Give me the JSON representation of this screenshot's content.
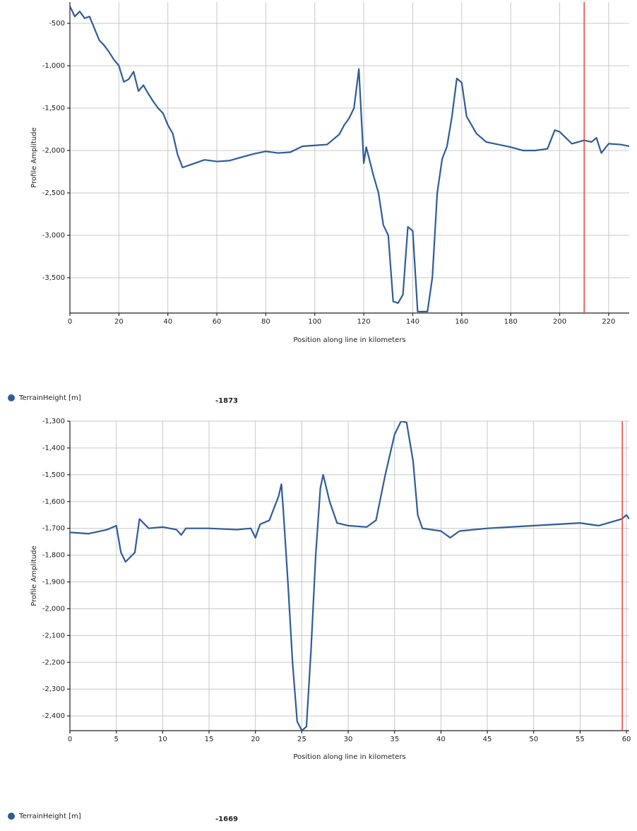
{
  "chart_data": [
    {
      "type": "line",
      "xlabel": "Position along line in kilometers",
      "ylabel": "Profile Amplitude",
      "xlim": [
        0,
        228.4
      ],
      "ylim": [
        -3917,
        -250
      ],
      "xticks": [
        0,
        20,
        40,
        60,
        80,
        100,
        120,
        140,
        160,
        180,
        200,
        220
      ],
      "yticks": [
        {
          "value": -500,
          "label": "-500"
        },
        {
          "value": -1000,
          "label": "-1,000"
        },
        {
          "value": -1500,
          "label": "-1,500"
        },
        {
          "value": -2000,
          "label": "-2,000"
        },
        {
          "value": -2500,
          "label": "-2,500"
        },
        {
          "value": -3000,
          "label": "-3,000"
        },
        {
          "value": -3500,
          "label": "-3,500"
        }
      ],
      "grid": true,
      "cursor_x": 210,
      "cursor_color": "#e8403a",
      "cursor_value": -1873,
      "x": [
        0,
        2,
        4,
        6,
        8,
        10,
        12,
        14,
        16,
        18,
        20,
        22,
        24,
        26,
        28,
        30,
        32,
        34,
        36,
        38,
        40,
        42,
        44,
        46,
        50,
        55,
        60,
        65,
        70,
        75,
        80,
        85,
        90,
        95,
        100,
        105,
        110,
        112,
        114,
        116,
        118,
        120,
        121,
        124,
        126,
        128,
        130,
        132,
        134,
        136,
        138,
        140,
        142,
        146,
        148,
        150,
        152,
        154,
        156,
        158,
        160,
        162,
        164,
        166,
        170,
        175,
        180,
        185,
        190,
        195,
        198,
        200,
        205,
        210,
        213,
        215,
        217,
        220,
        225,
        228.4
      ],
      "series": [
        {
          "name": "TerrainHeight [m]",
          "color": "#2e5c9a",
          "values": [
            -300,
            -420,
            -360,
            -440,
            -420,
            -560,
            -700,
            -760,
            -840,
            -930,
            -1000,
            -1190,
            -1160,
            -1070,
            -1300,
            -1230,
            -1330,
            -1420,
            -1500,
            -1560,
            -1700,
            -1800,
            -2050,
            -2200,
            -2160,
            -2110,
            -2130,
            -2120,
            -2080,
            -2040,
            -2010,
            -2030,
            -2020,
            -1950,
            -1940,
            -1930,
            -1810,
            -1700,
            -1620,
            -1500,
            -1040,
            -2150,
            -1960,
            -2300,
            -2500,
            -2880,
            -3000,
            -3780,
            -3800,
            -3700,
            -2900,
            -2950,
            -3900,
            -3900,
            -3500,
            -2500,
            -2100,
            -1950,
            -1600,
            -1150,
            -1200,
            -1600,
            -1700,
            -1800,
            -1900,
            -1930,
            -1960,
            -2000,
            -2000,
            -1980,
            -1760,
            -1780,
            -1920,
            -1880,
            -1900,
            -1850,
            -2030,
            -1920,
            -1930,
            -1950
          ]
        }
      ]
    },
    {
      "type": "line",
      "xlabel": "Position along line in kilometers",
      "ylabel": "Profile Amplitude",
      "xlim": [
        0,
        60.3
      ],
      "ylim": [
        -2455,
        -1300
      ],
      "xticks": [
        0,
        5,
        10,
        15,
        20,
        25,
        30,
        35,
        40,
        45,
        50,
        55,
        60
      ],
      "yticks": [
        {
          "value": -1300,
          "label": "-1,300"
        },
        {
          "value": -1400,
          "label": "-1,400"
        },
        {
          "value": -1500,
          "label": "-1,500"
        },
        {
          "value": -1600,
          "label": "-1,600"
        },
        {
          "value": -1700,
          "label": "-1,700"
        },
        {
          "value": -1800,
          "label": "-1,800"
        },
        {
          "value": -1900,
          "label": "-1,900"
        },
        {
          "value": -2000,
          "label": "-2,000"
        },
        {
          "value": -2100,
          "label": "-2,100"
        },
        {
          "value": -2200,
          "label": "-2,200"
        },
        {
          "value": -2300,
          "label": "-2,300"
        },
        {
          "value": -2400,
          "label": "-2,400"
        }
      ],
      "grid": true,
      "cursor_x": 59.55,
      "cursor_color": "#e8403a",
      "cursor_value": -1669,
      "x": [
        0,
        2,
        4,
        5,
        5.5,
        6,
        7,
        7.5,
        8.5,
        10,
        11.5,
        12,
        12.5,
        15,
        18,
        19.5,
        20,
        20.5,
        21.5,
        22.5,
        22.8,
        23,
        23.5,
        24,
        24.5,
        25,
        25.5,
        26,
        26.5,
        27,
        27.3,
        28,
        28.8,
        30,
        32,
        33,
        34,
        35,
        35.7,
        36.3,
        37,
        37.5,
        38,
        40,
        41,
        42,
        45,
        50,
        55,
        57,
        59.5,
        60,
        60.3
      ],
      "series": [
        {
          "name": "TerrainHeight [m]",
          "color": "#2e5c9a",
          "values": [
            -1715,
            -1720,
            -1705,
            -1690,
            -1790,
            -1825,
            -1790,
            -1665,
            -1700,
            -1695,
            -1705,
            -1725,
            -1700,
            -1700,
            -1705,
            -1700,
            -1735,
            -1685,
            -1670,
            -1580,
            -1535,
            -1630,
            -1900,
            -2200,
            -2420,
            -2455,
            -2440,
            -2150,
            -1800,
            -1550,
            -1500,
            -1600,
            -1680,
            -1690,
            -1695,
            -1670,
            -1500,
            -1350,
            -1300,
            -1305,
            -1450,
            -1650,
            -1700,
            -1710,
            -1735,
            -1710,
            -1700,
            -1690,
            -1680,
            -1690,
            -1665,
            -1650,
            -1665
          ]
        }
      ]
    }
  ]
}
